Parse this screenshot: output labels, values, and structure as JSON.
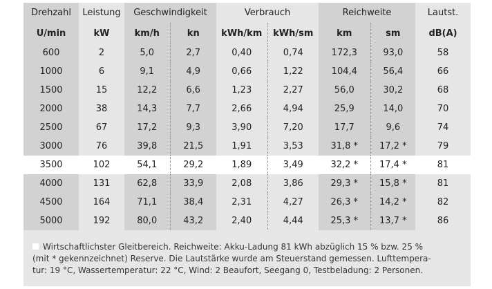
{
  "header_groups": [
    "Drehzahl",
    "Leistung",
    "Geschwindigkeit",
    "Verbrauch",
    "Reichweite",
    "Lautst."
  ],
  "units": [
    "U/min",
    "kW",
    "km/h",
    "kn",
    "kWh/km",
    "kWh/sm",
    "km",
    "sm",
    "dB(A)"
  ],
  "rows": [
    [
      "600",
      "2",
      "5,0",
      "2,7",
      "0,40",
      "0,74",
      "172,3",
      "93,0",
      "58"
    ],
    [
      "1000",
      "6",
      "9,1",
      "4,9",
      "0,66",
      "1,22",
      "104,4",
      "56,4",
      "66"
    ],
    [
      "1500",
      "15",
      "12,2",
      "6,6",
      "1,23",
      "2,27",
      "56,0",
      "30,2",
      "68"
    ],
    [
      "2000",
      "38",
      "14,3",
      "7,7",
      "2,66",
      "4,94",
      "25,9",
      "14,0",
      "70"
    ],
    [
      "2500",
      "67",
      "17,2",
      "9,3",
      "3,90",
      "7,20",
      "17,7",
      "9,6",
      "74"
    ],
    [
      "3000",
      "76",
      "39,8",
      "21,5",
      "1,91",
      "3,53",
      "31,8 *",
      "17,2 *",
      "79"
    ],
    [
      "3500",
      "102",
      "54,1",
      "29,2",
      "1,89",
      "3,49",
      "32,2 *",
      "17,4 *",
      "81"
    ],
    [
      "4000",
      "131",
      "62,8",
      "33,9",
      "2,08",
      "3,86",
      "29,3 *",
      "15,8 *",
      "81"
    ],
    [
      "4500",
      "164",
      "71,1",
      "38,4",
      "2,31",
      "4,27",
      "26,3 *",
      "14,2 *",
      "82"
    ],
    [
      "5000",
      "192",
      "80,0",
      "43,2",
      "2,40",
      "4,44",
      "25,3 *",
      "13,7 *",
      "86"
    ]
  ],
  "highlight_row_index": 6,
  "footnote": {
    "line1": "Wirtschaftlichster Gleitbereich. Reichweite: Akku-Ladung 81 kWh abzüglich 15 % bzw. 25 %",
    "line2": "(mit * gekennzeichnet) Reserve. Die Lautstärke wurde am Steuerstand gemessen. Lufttempera-",
    "line3": "tur: 19 °C, Wassertemperatur: 22 °C, Wind: 2 Beaufort, Seegang 0, Testbeladung: 2 Personen."
  },
  "colors": {
    "panel": "#e6e6e6",
    "dark_column": "#d2d2d2",
    "highlight": "#ffffff"
  }
}
